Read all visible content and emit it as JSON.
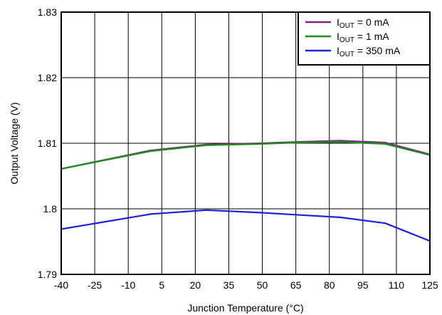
{
  "chart_data": {
    "type": "line",
    "xlabel": "Junction Temperature (°C)",
    "ylabel": "Output Voltage (V)",
    "xlim": [
      -40,
      125
    ],
    "ylim": [
      1.79,
      1.83
    ],
    "x_ticks": [
      -40,
      -25,
      -10,
      5,
      20,
      35,
      50,
      65,
      80,
      95,
      110,
      125
    ],
    "x_tick_labels": [
      "-40",
      "-25",
      "-10",
      "5",
      "20",
      "35",
      "50",
      "65",
      "80",
      "95",
      "110",
      "125"
    ],
    "y_ticks": [
      1.79,
      1.8,
      1.81,
      1.82,
      1.83
    ],
    "y_tick_labels": [
      "1.79",
      "1.8",
      "1.81",
      "1.82",
      "1.83"
    ],
    "grid": true,
    "legend_position": "top-right",
    "series": [
      {
        "name_main": "I",
        "name_sub": "OUT",
        "name_rest": " = 0 mA",
        "color": "#7B2A7F",
        "points": [
          [
            -40,
            1.8061
          ],
          [
            0,
            1.8089
          ],
          [
            25,
            1.8098
          ],
          [
            50,
            1.81
          ],
          [
            65,
            1.8102
          ],
          [
            85,
            1.8104
          ],
          [
            105,
            1.8101
          ],
          [
            125,
            1.8083
          ]
        ]
      },
      {
        "name_main": "I",
        "name_sub": "OUT",
        "name_rest": " = 1 mA",
        "color": "#1E8C1E",
        "points": [
          [
            -40,
            1.8061
          ],
          [
            0,
            1.8088
          ],
          [
            25,
            1.8097
          ],
          [
            50,
            1.8099
          ],
          [
            65,
            1.8101
          ],
          [
            85,
            1.8102
          ],
          [
            105,
            1.8099
          ],
          [
            125,
            1.8082
          ]
        ]
      },
      {
        "name_main": "I",
        "name_sub": "OUT",
        "name_rest": " = 350 mA",
        "color": "#1F1FE0",
        "points": [
          [
            -40,
            1.7969
          ],
          [
            0,
            1.7992
          ],
          [
            25,
            1.7998
          ],
          [
            50,
            1.7994
          ],
          [
            65,
            1.7991
          ],
          [
            85,
            1.7987
          ],
          [
            105,
            1.7978
          ],
          [
            125,
            1.7951
          ]
        ]
      }
    ]
  }
}
